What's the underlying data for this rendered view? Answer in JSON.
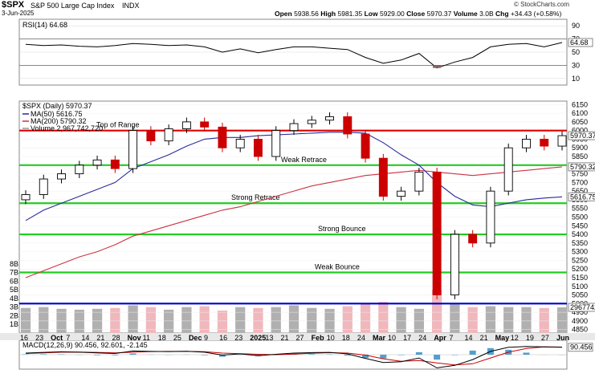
{
  "header": {
    "symbol": "$SPX",
    "name": "S&P 500 Large Cap Index",
    "exchange": "INDX",
    "date": "3-Jun-2025",
    "open_label": "Open",
    "open": "5938.56",
    "high_label": "High",
    "high": "5981.35",
    "low_label": "Low",
    "low": "5929.00",
    "close_label": "Close",
    "close": "5970.37",
    "volume_label": "Volume",
    "volume": "3.0B",
    "chg_label": "Chg",
    "chg": "+34.43 (+0.58%)",
    "brand": "© StockCharts.com"
  },
  "colors": {
    "up": "#000000",
    "down": "#cc0000",
    "ma50": "#2a2a9a",
    "ma200": "#cc3344",
    "range_top": "#dd0000",
    "level_line": "#22cc22",
    "blue_level": "#0000cc",
    "vol_up": "#b0b0b0",
    "vol_down": "#f0b8bc",
    "macd_hist": "#4f9fd0"
  },
  "chart_data": [
    {
      "type": "line",
      "panel": "RSI",
      "title": "RSI(14) 64.68",
      "yticks": [
        10,
        30,
        50,
        70,
        90
      ],
      "ylim": [
        0,
        100
      ],
      "overbought": 70,
      "oversold": 30,
      "last_value_label": "64.68",
      "x": [
        "Sep 16",
        "Sep 23",
        "Oct 7",
        "Oct 14",
        "Oct 21",
        "Oct 28",
        "Nov 11",
        "Nov 18",
        "Nov 25",
        "Dec 9",
        "Dec 16",
        "Dec 23",
        "Jan 6",
        "Jan 13",
        "Jan 21",
        "Jan 27",
        "Feb 10",
        "Feb 18",
        "Feb 24",
        "Mar 3",
        "Mar 10",
        "Mar 17",
        "Mar 24",
        "Apr 7",
        "Apr 14",
        "Apr 21",
        "May 5",
        "May 12",
        "May 19",
        "May 27",
        "Jun 3"
      ],
      "values": [
        62,
        60,
        61,
        59,
        58,
        60,
        63,
        62,
        60,
        61,
        58,
        50,
        55,
        49,
        54,
        58,
        58,
        56,
        54,
        42,
        33,
        38,
        48,
        26,
        35,
        42,
        58,
        62,
        63,
        58,
        64.68
      ]
    },
    {
      "type": "candlestick",
      "panel": "Price",
      "title": "$SPX (Daily) 5970.37",
      "legend": [
        {
          "name": "MA(50) 5616.75",
          "color": "#2a2a9a"
        },
        {
          "name": "MA(200) 5790.32",
          "color": "#cc3344"
        },
        {
          "name": "Volume 2,967,742,720",
          "color": "#999999"
        }
      ],
      "yticks": [
        4850,
        4900,
        4950,
        5000,
        5050,
        5100,
        5150,
        5200,
        5250,
        5300,
        5350,
        5400,
        5450,
        5500,
        5550,
        5600,
        5650,
        5700,
        5750,
        5800,
        5850,
        5900,
        5950,
        6000,
        6050,
        6100,
        6150
      ],
      "ylim": [
        4830,
        6170
      ],
      "vol_ticks": [
        "1B",
        "2B",
        "3B",
        "4B",
        "5B",
        "6B",
        "7B",
        "8B"
      ],
      "x": [
        "Sep 16",
        "Sep 23",
        "Oct 7",
        "Oct 14",
        "Oct 21",
        "Oct 28",
        "Nov 11",
        "Nov 18",
        "Nov 25",
        "Dec 9",
        "Dec 16",
        "Dec 23",
        "Jan 6",
        "Jan 13",
        "Jan 21",
        "Jan 27",
        "Feb 10",
        "Feb 18",
        "Feb 24",
        "Mar 3",
        "Mar 10",
        "Mar 17",
        "Mar 24",
        "Apr 7",
        "Apr 14",
        "Apr 21",
        "May 5",
        "May 12",
        "May 19",
        "May 27",
        "Jun 3"
      ],
      "close": [
        5630,
        5720,
        5750,
        5800,
        5830,
        5780,
        6000,
        5940,
        6010,
        6050,
        6020,
        5900,
        5950,
        5850,
        6000,
        6040,
        6060,
        6080,
        5980,
        5840,
        5620,
        5650,
        5760,
        5050,
        5400,
        5350,
        5650,
        5900,
        5950,
        5910,
        5970.37
      ],
      "ma50": [
        5480,
        5540,
        5580,
        5620,
        5660,
        5700,
        5780,
        5820,
        5860,
        5910,
        5950,
        5960,
        5960,
        5970,
        5975,
        5980,
        5985,
        5990,
        5990,
        5985,
        5930,
        5860,
        5800,
        5700,
        5620,
        5570,
        5560,
        5580,
        5600,
        5610,
        5616.75
      ],
      "ma200": [
        5150,
        5190,
        5230,
        5270,
        5300,
        5340,
        5390,
        5420,
        5450,
        5480,
        5510,
        5540,
        5560,
        5590,
        5620,
        5650,
        5680,
        5700,
        5720,
        5740,
        5750,
        5760,
        5770,
        5760,
        5750,
        5740,
        5750,
        5760,
        5770,
        5780,
        5790.32
      ],
      "volume_b": [
        2.9,
        3.0,
        2.8,
        2.7,
        2.8,
        2.9,
        3.2,
        3.0,
        2.7,
        3.0,
        3.1,
        2.6,
        3.0,
        2.9,
        3.0,
        3.2,
        2.9,
        2.8,
        3.1,
        3.4,
        3.6,
        3.0,
        2.8,
        5.0,
        3.3,
        3.0,
        3.1,
        3.0,
        3.0,
        2.9,
        2.97
      ],
      "last_price_label": "5970.37",
      "ma50_label": "5616.75",
      "ma200_label": "5790.32",
      "volume_label": "2967742",
      "levels": [
        {
          "name": "Top of Range",
          "value": 6000,
          "color": "#dd0000"
        },
        {
          "name": "Weak Retrace",
          "value": 5800,
          "color": "#22cc22"
        },
        {
          "name": "Strong Retrace",
          "value": 5580,
          "color": "#22cc22"
        },
        {
          "name": "Strong Bounce",
          "value": 5400,
          "color": "#22cc22"
        },
        {
          "name": "Weak Bounce",
          "value": 5180,
          "color": "#22cc22"
        },
        {
          "name": "",
          "value": 5000,
          "color": "#0000cc"
        }
      ]
    },
    {
      "type": "line",
      "panel": "MACD",
      "title": "MACD(12,26,9) 90.456, 92.601, -2.145",
      "last_value_label": "90.456",
      "x": [
        "Sep 16",
        "Sep 23",
        "Oct 7",
        "Oct 14",
        "Oct 21",
        "Oct 28",
        "Nov 11",
        "Nov 18",
        "Nov 25",
        "Dec 9",
        "Dec 16",
        "Dec 23",
        "Jan 6",
        "Jan 13",
        "Jan 21",
        "Jan 27",
        "Feb 10",
        "Feb 18",
        "Feb 24",
        "Mar 3",
        "Mar 10",
        "Mar 17",
        "Mar 24",
        "Apr 7",
        "Apr 14",
        "Apr 21",
        "May 5",
        "May 12",
        "May 19",
        "May 27",
        "Jun 3"
      ],
      "macd": [
        20,
        28,
        35,
        30,
        22,
        15,
        45,
        40,
        38,
        42,
        30,
        -5,
        10,
        -12,
        5,
        20,
        25,
        28,
        10,
        -45,
        -95,
        -85,
        -40,
        -160,
        -130,
        -60,
        40,
        90,
        100,
        95,
        90.456
      ],
      "signal": [
        15,
        22,
        30,
        32,
        28,
        22,
        30,
        38,
        40,
        40,
        36,
        20,
        12,
        5,
        0,
        8,
        18,
        24,
        20,
        -5,
        -50,
        -80,
        -70,
        -100,
        -125,
        -110,
        -40,
        30,
        75,
        96,
        92.601
      ]
    }
  ],
  "xaxis": {
    "labels": [
      "16",
      "23",
      "Oct",
      "7",
      "14",
      "21",
      "28",
      "Nov",
      "11",
      "18",
      "25",
      "Dec",
      "9",
      "16",
      "23",
      "2025",
      "13",
      "21",
      "27",
      "Feb",
      "10",
      "18",
      "24",
      "Mar",
      "10",
      "17",
      "24",
      "Apr",
      "7",
      "14",
      "21",
      "May",
      "12",
      "19",
      "27",
      "Jun"
    ]
  }
}
